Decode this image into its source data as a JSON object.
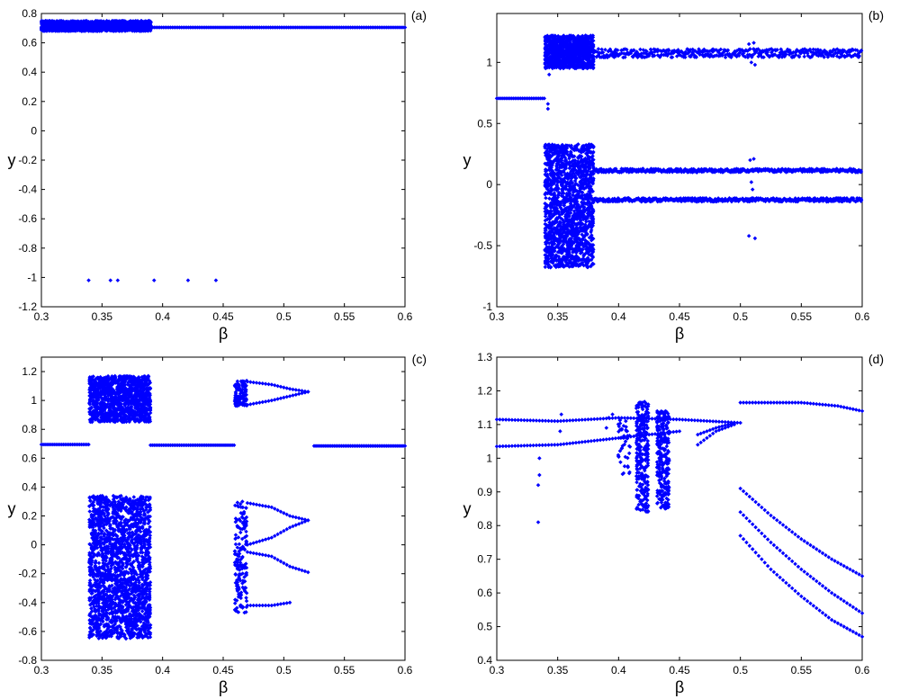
{
  "chart_data": [
    {
      "panel_label": "(a)",
      "type": "scatter",
      "xlabel": "β",
      "ylabel": "y",
      "xlim": [
        0.3,
        0.6
      ],
      "ylim": [
        -1.2,
        0.8
      ],
      "xticks": [
        "0.3",
        "0.35",
        "0.4",
        "0.45",
        "0.5",
        "0.55",
        "0.6"
      ],
      "yticks": [
        "-1.2",
        "-1",
        "-0.8",
        "-0.6",
        "-0.4",
        "-0.2",
        "0",
        "0.2",
        "0.4",
        "0.6",
        "0.8"
      ],
      "color": "#0000ff",
      "bands": [
        {
          "x": [
            0.3,
            0.39
          ],
          "y": [
            0.68,
            0.75
          ],
          "density": 26
        },
        {
          "x": [
            0.39,
            0.6
          ],
          "y": [
            0.7,
            0.71
          ],
          "density": 2
        }
      ],
      "points": [
        [
          0.339,
          -1.02
        ],
        [
          0.357,
          -1.02
        ],
        [
          0.363,
          -1.02
        ],
        [
          0.393,
          -1.02
        ],
        [
          0.421,
          -1.02
        ],
        [
          0.444,
          -1.02
        ]
      ]
    },
    {
      "panel_label": "(b)",
      "type": "scatter",
      "xlabel": "β",
      "ylabel": "y",
      "xlim": [
        0.3,
        0.6
      ],
      "ylim": [
        -1,
        1.4
      ],
      "xticks": [
        "0.3",
        "0.35",
        "0.4",
        "0.45",
        "0.5",
        "0.55",
        "0.6"
      ],
      "yticks": [
        "-1",
        "-0.5",
        "0",
        "0.5",
        "1"
      ],
      "color": "#0000ff",
      "bands": [
        {
          "x": [
            0.3,
            0.34
          ],
          "y": [
            0.7,
            0.71
          ],
          "density": 2
        },
        {
          "x": [
            0.34,
            0.38
          ],
          "y": [
            0.95,
            1.22
          ],
          "density": 34
        },
        {
          "x": [
            0.34,
            0.38
          ],
          "y": [
            -0.68,
            0.33
          ],
          "density": 60
        },
        {
          "x": [
            0.38,
            0.6
          ],
          "y": [
            1.04,
            1.11
          ],
          "density": 3
        },
        {
          "x": [
            0.38,
            0.6
          ],
          "y": [
            0.1,
            0.13
          ],
          "density": 3
        },
        {
          "x": [
            0.38,
            0.6
          ],
          "y": [
            -0.14,
            -0.11
          ],
          "density": 3
        }
      ],
      "points": [
        [
          0.342,
          0.62
        ],
        [
          0.342,
          0.66
        ],
        [
          0.343,
          0.9
        ],
        [
          0.507,
          1.15
        ],
        [
          0.511,
          1.16
        ],
        [
          0.509,
          1.0
        ],
        [
          0.512,
          0.98
        ],
        [
          0.508,
          0.2
        ],
        [
          0.511,
          0.21
        ],
        [
          0.507,
          -0.42
        ],
        [
          0.512,
          -0.44
        ],
        [
          0.509,
          0.02
        ],
        [
          0.51,
          -0.04
        ]
      ]
    },
    {
      "panel_label": "(c)",
      "type": "scatter",
      "xlabel": "β",
      "ylabel": "y",
      "xlim": [
        0.3,
        0.6
      ],
      "ylim": [
        -0.8,
        1.3
      ],
      "xticks": [
        "0.3",
        "0.35",
        "0.4",
        "0.45",
        "0.5",
        "0.55",
        "0.6"
      ],
      "yticks": [
        "-0.8",
        "-0.6",
        "-0.4",
        "-0.2",
        "0",
        "0.2",
        "0.4",
        "0.6",
        "0.8",
        "1",
        "1.2"
      ],
      "color": "#0000ff",
      "bands": [
        {
          "x": [
            0.3,
            0.34
          ],
          "y": [
            0.69,
            0.7
          ],
          "density": 2
        },
        {
          "x": [
            0.34,
            0.39
          ],
          "y": [
            0.85,
            1.17
          ],
          "density": 34
        },
        {
          "x": [
            0.34,
            0.39
          ],
          "y": [
            -0.65,
            0.34
          ],
          "density": 60
        },
        {
          "x": [
            0.39,
            0.46
          ],
          "y": [
            0.69,
            0.69
          ],
          "density": 2
        },
        {
          "x": [
            0.46,
            0.47
          ],
          "y": [
            0.96,
            1.14
          ],
          "density": 14
        },
        {
          "x": [
            0.46,
            0.47
          ],
          "y": [
            -0.48,
            0.3
          ],
          "density": 24
        },
        {
          "x": [
            0.525,
            0.6
          ],
          "y": [
            0.68,
            0.69
          ],
          "density": 2
        }
      ],
      "curves": [
        {
          "x": [
            0.47,
            0.49,
            0.505,
            0.52
          ],
          "y": [
            1.13,
            1.11,
            1.08,
            1.06
          ]
        },
        {
          "x": [
            0.47,
            0.49,
            0.505,
            0.52
          ],
          "y": [
            0.97,
            1.0,
            1.03,
            1.06
          ]
        },
        {
          "x": [
            0.47,
            0.49,
            0.505,
            0.52
          ],
          "y": [
            0.29,
            0.26,
            0.2,
            0.17
          ]
        },
        {
          "x": [
            0.47,
            0.49,
            0.505,
            0.52
          ],
          "y": [
            0.0,
            0.05,
            0.12,
            0.17
          ]
        },
        {
          "x": [
            0.47,
            0.49,
            0.505,
            0.52
          ],
          "y": [
            -0.05,
            -0.08,
            -0.15,
            -0.19
          ]
        },
        {
          "x": [
            0.47,
            0.49,
            0.505
          ],
          "y": [
            -0.42,
            -0.42,
            -0.4
          ]
        }
      ]
    },
    {
      "panel_label": "(d)",
      "type": "scatter",
      "xlabel": "β",
      "ylabel": "y",
      "xlim": [
        0.3,
        0.6
      ],
      "ylim": [
        0.4,
        1.3
      ],
      "xticks": [
        "0.3",
        "0.35",
        "0.4",
        "0.45",
        "0.5",
        "0.55",
        "0.6"
      ],
      "yticks": [
        "0.4",
        "0.5",
        "0.6",
        "0.7",
        "0.8",
        "0.9",
        "1",
        "1.1",
        "1.2",
        "1.3"
      ],
      "color": "#0000ff",
      "curves": [
        {
          "x": [
            0.3,
            0.35,
            0.4,
            0.45,
            0.5
          ],
          "y": [
            1.115,
            1.11,
            1.12,
            1.115,
            1.105
          ]
        },
        {
          "x": [
            0.3,
            0.35,
            0.4,
            0.45
          ],
          "y": [
            1.035,
            1.04,
            1.06,
            1.08
          ]
        },
        {
          "x": [
            0.5,
            0.55,
            0.58,
            0.6
          ],
          "y": [
            1.165,
            1.165,
            1.155,
            1.14
          ]
        },
        {
          "x": [
            0.5,
            0.525,
            0.55,
            0.575,
            0.6
          ],
          "y": [
            0.91,
            0.83,
            0.76,
            0.7,
            0.65
          ]
        },
        {
          "x": [
            0.5,
            0.525,
            0.55,
            0.575,
            0.6
          ],
          "y": [
            0.84,
            0.75,
            0.67,
            0.6,
            0.54
          ]
        },
        {
          "x": [
            0.5,
            0.525,
            0.55,
            0.575,
            0.6
          ],
          "y": [
            0.77,
            0.67,
            0.59,
            0.52,
            0.47
          ]
        },
        {
          "x": [
            0.465,
            0.48,
            0.495
          ],
          "y": [
            1.04,
            1.08,
            1.1
          ]
        },
        {
          "x": [
            0.465,
            0.48,
            0.495
          ],
          "y": [
            1.07,
            1.09,
            1.105
          ]
        }
      ],
      "bands": [
        {
          "x": [
            0.415,
            0.425
          ],
          "y": [
            0.84,
            1.17
          ],
          "density": 40
        },
        {
          "x": [
            0.432,
            0.442
          ],
          "y": [
            0.85,
            1.14
          ],
          "density": 40
        },
        {
          "x": [
            0.4,
            0.41
          ],
          "y": [
            0.95,
            1.13
          ],
          "density": 6
        }
      ],
      "points": [
        [
          0.334,
          0.81
        ],
        [
          0.334,
          0.92
        ],
        [
          0.335,
          0.95
        ],
        [
          0.335,
          1.0
        ],
        [
          0.352,
          1.08
        ],
        [
          0.353,
          1.13
        ],
        [
          0.39,
          1.09
        ],
        [
          0.392,
          1.12
        ],
        [
          0.395,
          1.13
        ]
      ]
    }
  ]
}
